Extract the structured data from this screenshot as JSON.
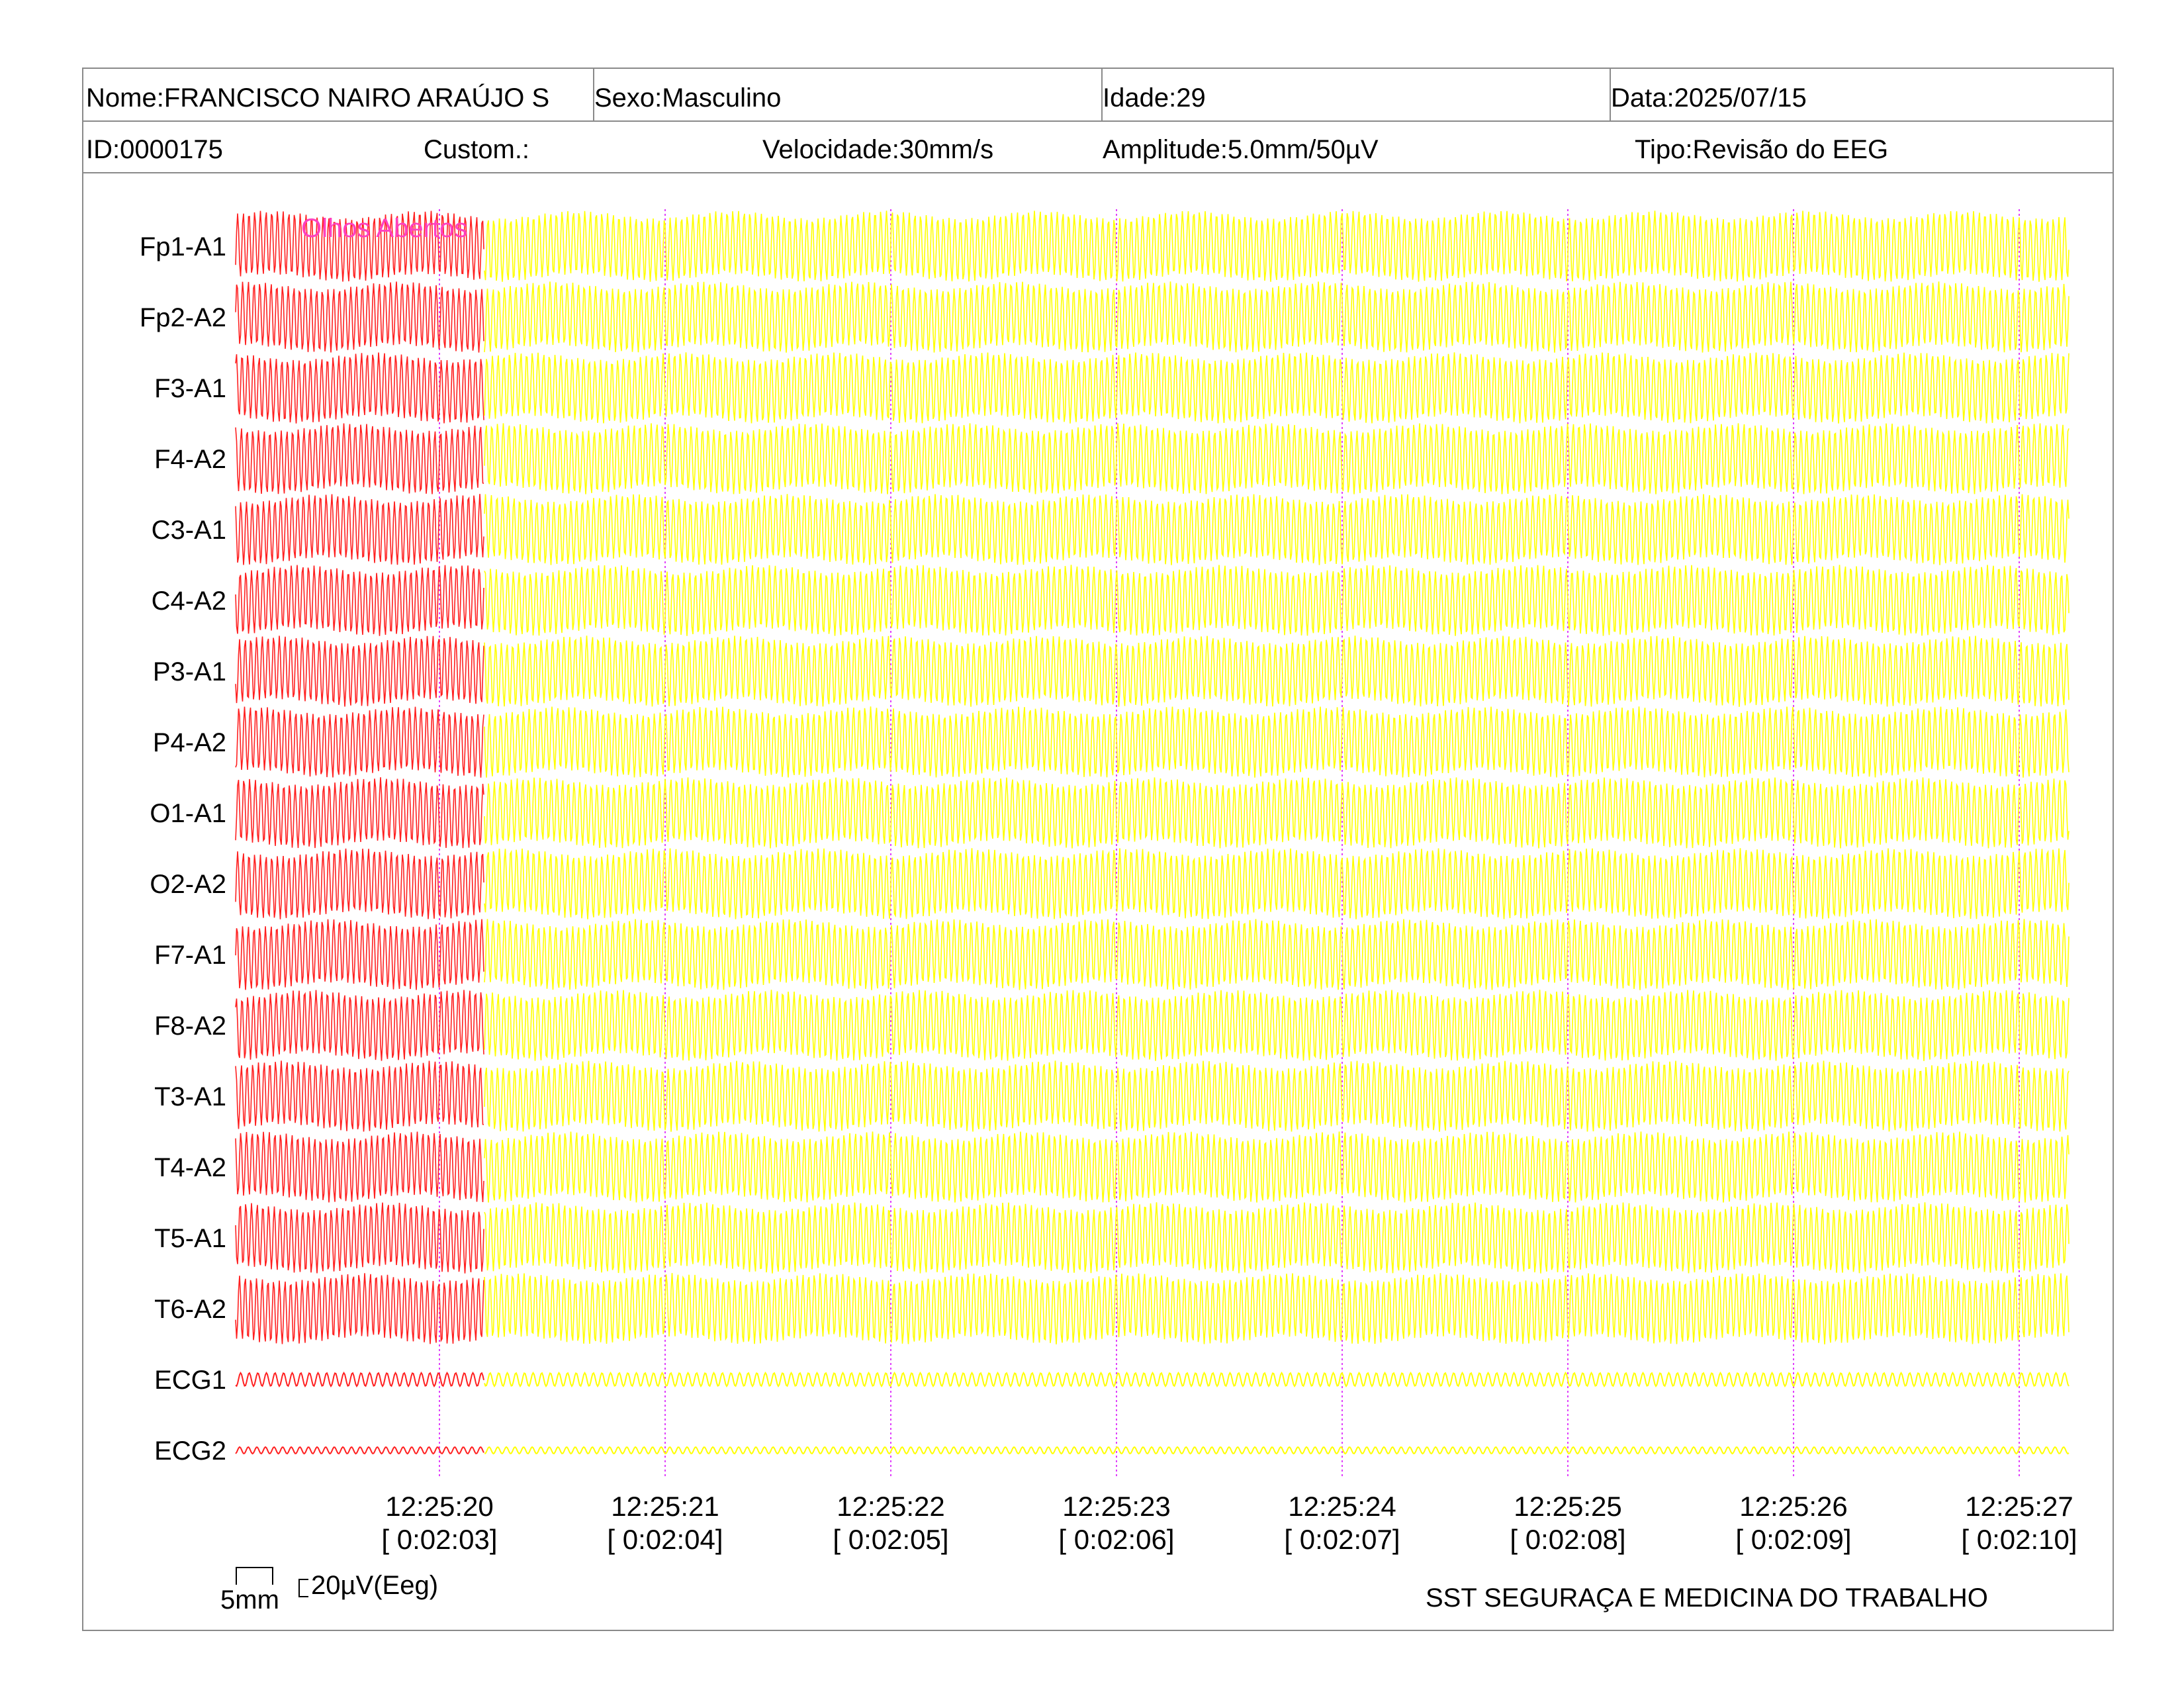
{
  "header": {
    "name": "Nome:FRANCISCO NAIRO ARAÚJO S",
    "sex": "Sexo:Masculino",
    "age": "Idade:29",
    "date": "Data:2025/07/15",
    "id": "ID:0000175",
    "custom": "Custom.:",
    "speed": "Velocidade:30mm/s",
    "amplitude": "Amplitude:5.0mm/50µV",
    "type": "Tipo:Revisão do EEG"
  },
  "chart_data": {
    "type": "line",
    "title": "",
    "channels": [
      "Fp1-A1",
      "Fp2-A2",
      "F3-A1",
      "F4-A2",
      "C3-A1",
      "C4-A2",
      "P3-A1",
      "P4-A2",
      "O1-A1",
      "O2-A2",
      "F7-A1",
      "F8-A2",
      "T3-A1",
      "T4-A2",
      "T5-A1",
      "T6-A2",
      "ECG1",
      "ECG2"
    ],
    "x_time": [
      "12:25:20",
      "12:25:21",
      "12:25:22",
      "12:25:23",
      "12:25:24",
      "12:25:25",
      "12:25:26",
      "12:25:27"
    ],
    "x_elapsed": [
      "[ 0:02:03]",
      "[ 0:02:04]",
      "[ 0:02:05]",
      "[ 0:02:06]",
      "[ 0:02:07]",
      "[ 0:02:08]",
      "[ 0:02:09]",
      "[ 0:02:10]"
    ],
    "annotation": "Olhos Abertos",
    "segment_colors": {
      "before_event": "#ff2020",
      "after_event": "#ffff00"
    },
    "marker_color": "#e040fb",
    "annotation_color": "#ff40c0"
  },
  "scale": {
    "time_bar": "5mm",
    "amp_bar": "20µV(Eeg)"
  },
  "footer": {
    "company": "SST SEGURAÇA E MEDICINA DO TRABALHO"
  }
}
